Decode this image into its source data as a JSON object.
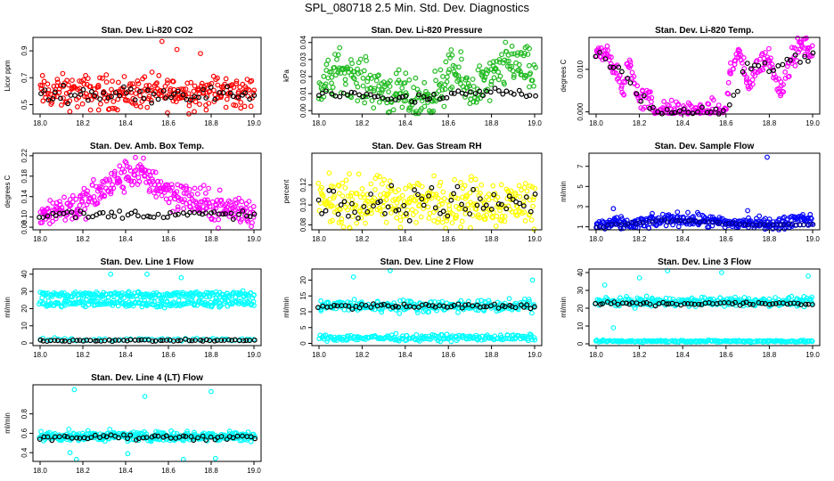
{
  "title": "SPL_080718  2.5 Min. Std. Dev. Diagnostics",
  "colors": {
    "black": "#000000",
    "red": "#ff0000",
    "green": "#22bb22",
    "magenta": "#ff00ff",
    "yellow": "#ffff00",
    "blue": "#0000ff",
    "navy": "#000088",
    "cyan": "#00ffff"
  },
  "chart_data": [
    {
      "id": "co2",
      "type": "scatter",
      "title": "Stan. Dev. Li-820 CO2",
      "ylabel": "Licor ppm",
      "xlim": [
        18.0,
        19.0
      ],
      "xticks": [
        "18.0",
        "18.2",
        "18.4",
        "18.6",
        "18.8",
        "19.0"
      ],
      "ylim": [
        0.43,
        1.0
      ],
      "yticks": [
        "0.5",
        "0.7",
        "0.9"
      ],
      "series": [
        {
          "name": "all",
          "color": "red",
          "n": 280,
          "base": 0.59,
          "spread": 0.09,
          "outliers": [
            [
              18.57,
              0.97
            ],
            [
              18.64,
              0.91
            ],
            [
              18.75,
              0.88
            ]
          ]
        },
        {
          "name": "avg",
          "color": "black",
          "n": 55,
          "base": 0.58,
          "spread": 0.04
        }
      ]
    },
    {
      "id": "pressure",
      "type": "scatter",
      "title": "Stan. Dev. Li-820 Pressure",
      "ylabel": "kPa",
      "xlim": [
        18.0,
        19.0
      ],
      "xticks": [
        "18.0",
        "18.2",
        "18.4",
        "18.6",
        "18.8",
        "19.0"
      ],
      "ylim": [
        -0.002,
        0.043
      ],
      "yticks": [
        "0.00",
        "0.01",
        "0.02",
        "0.03",
        "0.04"
      ],
      "series": [
        {
          "name": "all",
          "color": "green",
          "n": 320,
          "profile": [
            [
              18.0,
              0.012
            ],
            [
              18.1,
              0.025
            ],
            [
              18.2,
              0.018
            ],
            [
              18.3,
              0.012
            ],
            [
              18.45,
              0.006
            ],
            [
              18.55,
              0.01
            ],
            [
              18.62,
              0.024
            ],
            [
              18.7,
              0.012
            ],
            [
              18.8,
              0.018
            ],
            [
              18.9,
              0.03
            ],
            [
              19.0,
              0.02
            ]
          ],
          "spread": 0.009
        },
        {
          "name": "avg",
          "color": "black",
          "n": 55,
          "profile": [
            [
              18.0,
              0.009
            ],
            [
              18.2,
              0.01
            ],
            [
              18.4,
              0.006
            ],
            [
              18.6,
              0.008
            ],
            [
              18.8,
              0.011
            ],
            [
              19.0,
              0.01
            ]
          ],
          "spread": 0.002
        }
      ]
    },
    {
      "id": "temp",
      "type": "scatter",
      "title": "Stan. Dev. Li-820 Temp.",
      "ylabel": "degrees C",
      "xlim": [
        18.0,
        19.0
      ],
      "xticks": [
        "18.0",
        "18.2",
        "18.4",
        "18.6",
        "18.8",
        "19.0"
      ],
      "ylim": [
        -0.0005,
        0.0175
      ],
      "yticks": [
        "0.000",
        "0.010"
      ],
      "series": [
        {
          "name": "all",
          "color": "magenta",
          "n": 300,
          "profile": [
            [
              18.0,
              0.015
            ],
            [
              18.05,
              0.013
            ],
            [
              18.1,
              0.009
            ],
            [
              18.12,
              0.004
            ],
            [
              18.15,
              0.012
            ],
            [
              18.2,
              0.003
            ],
            [
              18.25,
              0.003
            ],
            [
              18.27,
              0.0
            ],
            [
              18.6,
              0.0
            ],
            [
              18.62,
              0.01
            ],
            [
              18.66,
              0.014
            ],
            [
              18.7,
              0.006
            ],
            [
              18.75,
              0.011
            ],
            [
              18.8,
              0.013
            ],
            [
              18.85,
              0.005
            ],
            [
              18.9,
              0.012
            ],
            [
              18.95,
              0.016
            ],
            [
              19.0,
              0.014
            ]
          ],
          "spread": 0.0018
        },
        {
          "name": "avg",
          "color": "black",
          "n": 50,
          "profile": [
            [
              18.0,
              0.013
            ],
            [
              18.1,
              0.01
            ],
            [
              18.2,
              0.004
            ],
            [
              18.3,
              0.0
            ],
            [
              18.6,
              0.0
            ],
            [
              18.7,
              0.011
            ],
            [
              18.8,
              0.01
            ],
            [
              18.9,
              0.013
            ],
            [
              19.0,
              0.013
            ]
          ],
          "spread": 0.001
        }
      ]
    },
    {
      "id": "boxtemp",
      "type": "scatter",
      "title": "Stan. Dev. Amb. Box Temp.",
      "ylabel": "degrees C",
      "xlim": [
        18.0,
        19.0
      ],
      "xticks": [
        "18.0",
        "18.2",
        "18.4",
        "18.6",
        "18.8",
        "19.0"
      ],
      "ylim": [
        0.075,
        0.225
      ],
      "yticks": [
        "0.08",
        "0.10",
        "0.14",
        "0.18",
        "0.22"
      ],
      "series": [
        {
          "name": "all",
          "color": "magenta",
          "n": 330,
          "profile": [
            [
              18.0,
              0.11
            ],
            [
              18.2,
              0.125
            ],
            [
              18.35,
              0.17
            ],
            [
              18.45,
              0.19
            ],
            [
              18.6,
              0.15
            ],
            [
              18.8,
              0.12
            ],
            [
              19.0,
              0.11
            ]
          ],
          "spread": 0.022
        },
        {
          "name": "avg",
          "color": "black",
          "n": 55,
          "base": 0.105,
          "spread": 0.006
        }
      ]
    },
    {
      "id": "rh",
      "type": "scatter",
      "title": "Stan. Dev. Gas Stream RH",
      "ylabel": "percent",
      "xlim": [
        18.0,
        19.0
      ],
      "xticks": [
        "18.0",
        "18.2",
        "18.4",
        "18.6",
        "18.8",
        "19.0"
      ],
      "ylim": [
        0.075,
        0.152
      ],
      "yticks": [
        "0.08",
        "0.10",
        "0.12"
      ],
      "series": [
        {
          "name": "all",
          "color": "yellow",
          "n": 330,
          "base": 0.103,
          "spread": 0.017
        },
        {
          "name": "avg",
          "color": "black",
          "n": 60,
          "base": 0.102,
          "spread": 0.012
        }
      ]
    },
    {
      "id": "sampleflow",
      "type": "scatter",
      "title": "Stan. Dev. Sample Flow",
      "ylabel": "ml/min",
      "xlim": [
        18.0,
        19.0
      ],
      "xticks": [
        "18.0",
        "18.2",
        "18.4",
        "18.6",
        "18.8",
        "19.0"
      ],
      "ylim": [
        0.7,
        8.3
      ],
      "yticks": [
        "1",
        "3",
        "5",
        "7"
      ],
      "series": [
        {
          "name": "all",
          "color": "blue",
          "n": 300,
          "profile": [
            [
              18.0,
              1.2
            ],
            [
              18.2,
              1.3
            ],
            [
              18.35,
              1.8
            ],
            [
              18.5,
              1.6
            ],
            [
              18.6,
              1.3
            ],
            [
              18.7,
              1.4
            ],
            [
              18.85,
              1.2
            ],
            [
              18.95,
              1.9
            ],
            [
              19.0,
              1.6
            ]
          ],
          "spread": 0.45,
          "outliers": [
            [
              18.08,
              2.8
            ],
            [
              18.7,
              2.6
            ],
            [
              18.79,
              7.9
            ]
          ]
        },
        {
          "name": "avg",
          "color": "navy",
          "n": 55,
          "profile": [
            [
              18.0,
              1.0
            ],
            [
              18.3,
              1.6
            ],
            [
              18.45,
              1.6
            ],
            [
              18.6,
              1.3
            ],
            [
              18.8,
              1.2
            ],
            [
              19.0,
              1.2
            ]
          ],
          "spread": 0.08
        }
      ]
    },
    {
      "id": "line1",
      "type": "scatter",
      "title": "Stan. Dev. Line 1 Flow",
      "ylabel": "ml/min",
      "xlim": [
        18.0,
        19.0
      ],
      "xticks": [
        "18.0",
        "18.2",
        "18.4",
        "18.6",
        "18.8",
        "19.0"
      ],
      "ylim": [
        -1.5,
        43
      ],
      "yticks": [
        "0",
        "10",
        "20",
        "30",
        "40"
      ],
      "series": [
        {
          "name": "upper",
          "color": "cyan",
          "n": 200,
          "base": 28,
          "spread": 1.4,
          "outliers": [
            [
              18.33,
              40
            ],
            [
              18.5,
              40
            ],
            [
              18.66,
              38
            ]
          ]
        },
        {
          "name": "lower",
          "color": "cyan",
          "n": 200,
          "base": 23,
          "spread": 1.5
        },
        {
          "name": "low",
          "color": "cyan",
          "n": 60,
          "base": 2.0,
          "spread": 0.6
        },
        {
          "name": "avg",
          "color": "black",
          "n": 60,
          "base": 1.5,
          "spread": 0.4
        }
      ]
    },
    {
      "id": "line2",
      "type": "scatter",
      "title": "Stan. Dev. Line 2 Flow",
      "ylabel": "ml/min",
      "xlim": [
        18.0,
        19.0
      ],
      "xticks": [
        "18.0",
        "18.2",
        "18.4",
        "18.6",
        "18.8",
        "19.0"
      ],
      "ylim": [
        -0.7,
        23.5
      ],
      "yticks": [
        "0",
        "5",
        "10",
        "15",
        "20"
      ],
      "series": [
        {
          "name": "upper",
          "color": "cyan",
          "n": 240,
          "base": 11.8,
          "spread": 1.3,
          "outliers": [
            [
              18.16,
              21
            ],
            [
              18.33,
              23
            ],
            [
              18.99,
              20
            ]
          ]
        },
        {
          "name": "low",
          "color": "cyan",
          "n": 200,
          "base": 1.8,
          "spread": 0.7
        },
        {
          "name": "avg",
          "color": "black",
          "n": 60,
          "base": 11.8,
          "spread": 0.5
        }
      ]
    },
    {
      "id": "line3",
      "type": "scatter",
      "title": "Stan. Dev. Line 3 Flow",
      "ylabel": "ml/min",
      "xlim": [
        18.0,
        19.0
      ],
      "xticks": [
        "18.0",
        "18.2",
        "18.4",
        "18.6",
        "18.8",
        "19.0"
      ],
      "ylim": [
        -1.0,
        42
      ],
      "yticks": [
        "0",
        "10",
        "20",
        "30",
        "40"
      ],
      "series": [
        {
          "name": "upper",
          "color": "cyan",
          "n": 280,
          "base": 23.5,
          "spread": 1.8,
          "outliers": [
            [
              18.04,
              33
            ],
            [
              18.2,
              37
            ],
            [
              18.33,
              41
            ],
            [
              18.58,
              40
            ],
            [
              18.98,
              38
            ],
            [
              18.08,
              9
            ]
          ]
        },
        {
          "name": "low",
          "color": "cyan",
          "n": 200,
          "base": 1.5,
          "spread": 0.4
        },
        {
          "name": "avg",
          "color": "black",
          "n": 60,
          "base": 22.5,
          "spread": 0.8
        }
      ]
    },
    {
      "id": "line4",
      "type": "scatter",
      "title": "Stan. Dev. Line 4 (LT) Flow",
      "ylabel": "ml/min",
      "xlim": [
        18.0,
        19.0
      ],
      "xticks": [
        "18.0",
        "18.2",
        "18.4",
        "18.6",
        "18.8",
        "19.0"
      ],
      "ylim": [
        0.31,
        1.1
      ],
      "yticks": [
        "0.4",
        "0.6",
        "0.8"
      ],
      "series": [
        {
          "name": "all",
          "color": "cyan",
          "n": 320,
          "base": 0.57,
          "spread": 0.035,
          "outliers": [
            [
              18.16,
              1.05
            ],
            [
              18.49,
              0.98
            ],
            [
              18.8,
              1.03
            ],
            [
              18.17,
              0.33
            ],
            [
              18.41,
              0.39
            ],
            [
              18.67,
              0.33
            ],
            [
              18.82,
              0.34
            ],
            [
              18.14,
              0.4
            ]
          ]
        },
        {
          "name": "avg",
          "color": "black",
          "n": 55,
          "base": 0.56,
          "spread": 0.02
        }
      ]
    }
  ]
}
